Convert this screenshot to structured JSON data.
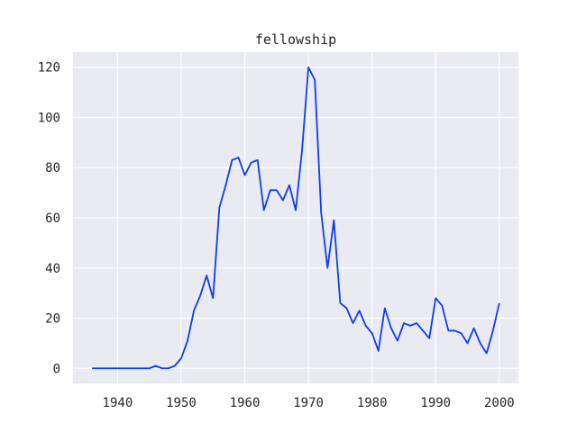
{
  "chart_data": {
    "type": "line",
    "title": "fellowship",
    "xlabel": "",
    "ylabel": "",
    "xlim": [
      1933,
      2003
    ],
    "ylim": [
      -6,
      126
    ],
    "x_ticks": [
      1940,
      1950,
      1960,
      1970,
      1980,
      1990,
      2000
    ],
    "y_ticks": [
      0,
      20,
      40,
      60,
      80,
      100,
      120
    ],
    "grid": true,
    "background": "#eaeaf2",
    "gridline_color": "#ffffff",
    "series": [
      {
        "color": "#0b3ef5",
        "x": [
          1936,
          1937,
          1938,
          1939,
          1940,
          1941,
          1942,
          1943,
          1944,
          1945,
          1946,
          1947,
          1948,
          1949,
          1950,
          1951,
          1952,
          1953,
          1954,
          1955,
          1956,
          1957,
          1958,
          1959,
          1960,
          1961,
          1962,
          1963,
          1964,
          1965,
          1966,
          1967,
          1968,
          1969,
          1970,
          1971,
          1972,
          1973,
          1974,
          1975,
          1976,
          1977,
          1978,
          1979,
          1980,
          1981,
          1982,
          1983,
          1984,
          1985,
          1986,
          1987,
          1988,
          1989,
          1990,
          1991,
          1992,
          1993,
          1994,
          1995,
          1996,
          1997,
          1998,
          1999,
          2000
        ],
        "y": [
          0,
          0,
          0,
          0,
          0,
          0,
          0,
          0,
          0,
          0,
          1,
          0,
          0,
          1,
          4,
          11,
          23,
          29,
          37,
          28,
          64,
          73,
          83,
          84,
          77,
          82,
          83,
          63,
          71,
          71,
          67,
          73,
          63,
          87,
          120,
          115,
          62,
          40,
          59,
          26,
          24,
          18,
          23,
          17,
          14,
          7,
          24,
          16,
          11,
          18,
          17,
          18,
          15,
          12,
          28,
          25,
          15,
          15,
          14,
          10,
          16,
          10,
          6,
          15,
          26
        ]
      }
    ]
  }
}
